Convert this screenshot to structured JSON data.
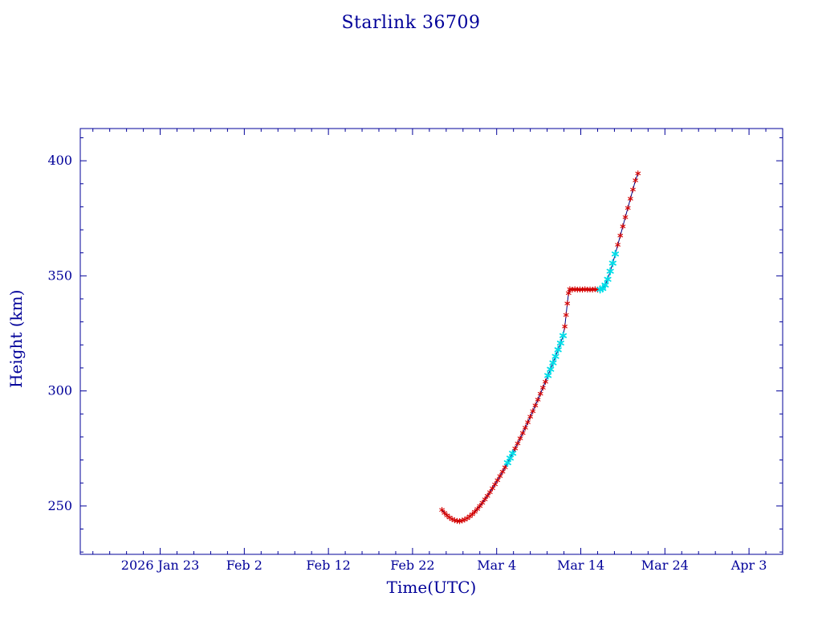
{
  "page": {
    "background": "#ffffff"
  },
  "chart_data": {
    "type": "line",
    "title": "Starlink 36709",
    "xlabel": "Time(UTC)",
    "ylabel": "Height (km)",
    "x_unit_note": "x values are days relative to the 2026 Jan 23 tick",
    "xlim": [
      -9.5,
      74
    ],
    "ylim": [
      229,
      414
    ],
    "x_ticks": [
      {
        "value": 0,
        "label": "2026 Jan 23"
      },
      {
        "value": 10,
        "label": "Feb 2"
      },
      {
        "value": 20,
        "label": "Feb 12"
      },
      {
        "value": 30,
        "label": "Feb 22"
      },
      {
        "value": 40,
        "label": "Mar 4"
      },
      {
        "value": 50,
        "label": "Mar 14"
      },
      {
        "value": 60,
        "label": "Mar 24"
      },
      {
        "value": 70,
        "label": "Apr 3"
      }
    ],
    "y_ticks": [
      250,
      300,
      350,
      400
    ],
    "grid": false,
    "legend": "none",
    "axis_color": "#000099",
    "line_color": "#000080",
    "marker_style": "asterisk",
    "marker_colors": {
      "r": "#d40000",
      "c": "#00dde8"
    },
    "points": [
      [
        33.5,
        248.3,
        "r"
      ],
      [
        33.8,
        247.0,
        "r"
      ],
      [
        34.1,
        245.9,
        "r"
      ],
      [
        34.4,
        245.0,
        "r"
      ],
      [
        34.7,
        244.3,
        "r"
      ],
      [
        35.0,
        243.8,
        "r"
      ],
      [
        35.3,
        243.5,
        "r"
      ],
      [
        35.6,
        243.4,
        "r"
      ],
      [
        35.9,
        243.7,
        "r"
      ],
      [
        36.2,
        244.1,
        "r"
      ],
      [
        36.5,
        244.7,
        "r"
      ],
      [
        36.8,
        245.5,
        "r"
      ],
      [
        37.1,
        246.4,
        "r"
      ],
      [
        37.4,
        247.5,
        "r"
      ],
      [
        37.7,
        248.7,
        "r"
      ],
      [
        38.0,
        250.0,
        "r"
      ],
      [
        38.3,
        251.4,
        "r"
      ],
      [
        38.6,
        252.9,
        "r"
      ],
      [
        38.9,
        254.4,
        "r"
      ],
      [
        39.2,
        256.0,
        "r"
      ],
      [
        39.5,
        257.7,
        "r"
      ],
      [
        39.8,
        259.4,
        "r"
      ],
      [
        40.1,
        261.2,
        "r"
      ],
      [
        40.4,
        263.0,
        "r"
      ],
      [
        40.7,
        264.9,
        "r"
      ],
      [
        41.0,
        266.8,
        "r"
      ],
      [
        41.3,
        268.8,
        "c"
      ],
      [
        41.6,
        270.8,
        "c"
      ],
      [
        41.9,
        272.9,
        "c"
      ],
      [
        42.2,
        275.0,
        "r"
      ],
      [
        42.5,
        277.2,
        "r"
      ],
      [
        42.8,
        279.4,
        "r"
      ],
      [
        43.1,
        281.7,
        "r"
      ],
      [
        43.4,
        284.0,
        "r"
      ],
      [
        43.7,
        286.4,
        "r"
      ],
      [
        44.0,
        288.8,
        "r"
      ],
      [
        44.3,
        291.2,
        "r"
      ],
      [
        44.6,
        293.7,
        "r"
      ],
      [
        44.9,
        296.2,
        "r"
      ],
      [
        45.2,
        298.8,
        "r"
      ],
      [
        45.5,
        301.4,
        "r"
      ],
      [
        45.8,
        304.0,
        "r"
      ],
      [
        46.1,
        306.7,
        "c"
      ],
      [
        46.4,
        309.4,
        "c"
      ],
      [
        46.7,
        312.2,
        "c"
      ],
      [
        47.0,
        315.0,
        "c"
      ],
      [
        47.3,
        317.9,
        "c"
      ],
      [
        47.6,
        320.8,
        "c"
      ],
      [
        47.9,
        324.0,
        "c"
      ],
      [
        48.1,
        328.0,
        "r"
      ],
      [
        48.25,
        333.0,
        "r"
      ],
      [
        48.4,
        338.0,
        "r"
      ],
      [
        48.55,
        342.5,
        "r"
      ],
      [
        48.7,
        344.2,
        "r"
      ],
      [
        49.0,
        344.0,
        "r"
      ],
      [
        49.3,
        344.2,
        "r"
      ],
      [
        49.6,
        344.0,
        "r"
      ],
      [
        49.9,
        344.1,
        "r"
      ],
      [
        50.2,
        344.0,
        "r"
      ],
      [
        50.5,
        344.2,
        "r"
      ],
      [
        50.8,
        344.0,
        "r"
      ],
      [
        51.1,
        344.1,
        "r"
      ],
      [
        51.4,
        344.0,
        "r"
      ],
      [
        51.7,
        344.2,
        "r"
      ],
      [
        52.0,
        344.0,
        "r"
      ],
      [
        52.3,
        344.1,
        "c"
      ],
      [
        52.6,
        344.5,
        "c"
      ],
      [
        52.9,
        346.0,
        "c"
      ],
      [
        53.2,
        348.5,
        "c"
      ],
      [
        53.5,
        352.0,
        "c"
      ],
      [
        53.8,
        355.5,
        "c"
      ],
      [
        54.1,
        359.5,
        "c"
      ],
      [
        54.4,
        363.5,
        "r"
      ],
      [
        54.7,
        367.5,
        "r"
      ],
      [
        55.0,
        371.5,
        "r"
      ],
      [
        55.3,
        375.5,
        "r"
      ],
      [
        55.6,
        379.5,
        "r"
      ],
      [
        55.9,
        383.5,
        "r"
      ],
      [
        56.2,
        387.5,
        "r"
      ],
      [
        56.5,
        391.5,
        "r"
      ],
      [
        56.8,
        394.5,
        "r"
      ]
    ]
  }
}
